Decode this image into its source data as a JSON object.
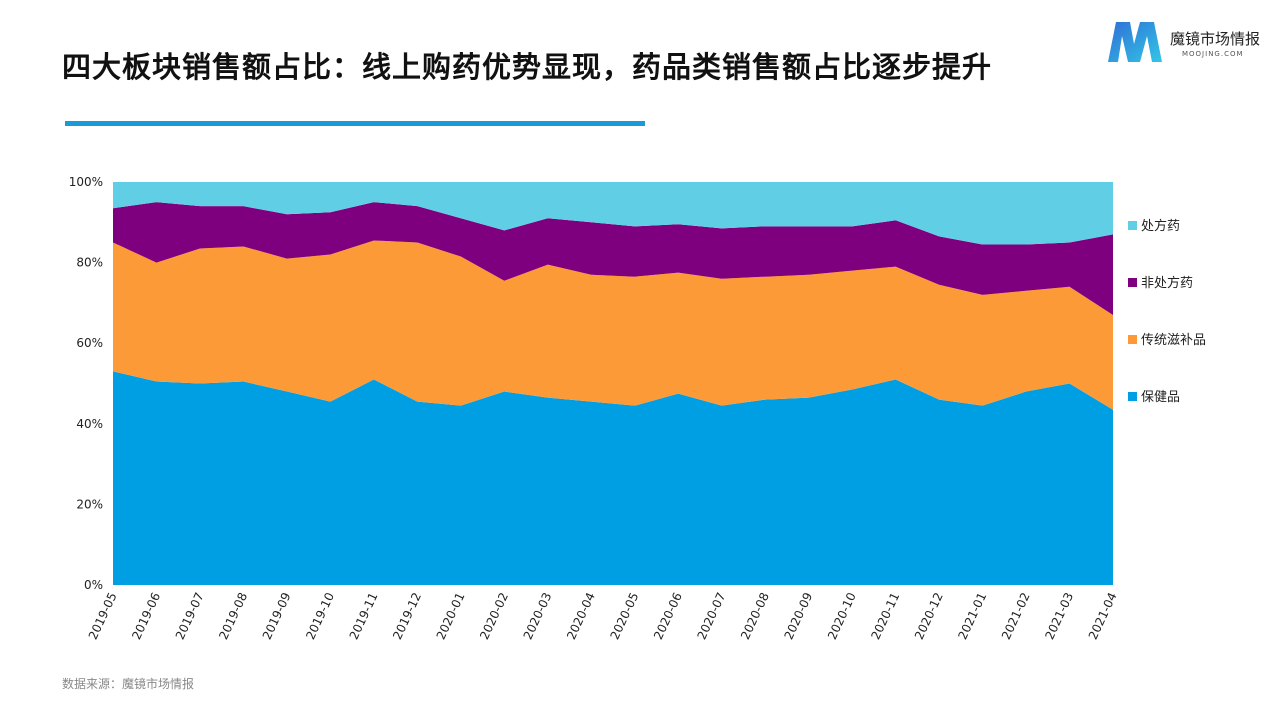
{
  "page": {
    "title": "四大板块销售额占比：线上购药优势显现，药品类销售额占比逐步提升",
    "source": "数据来源：魔镜市场情报",
    "accent_color": "#1a9ad6"
  },
  "logo": {
    "mark": "M",
    "name": "魔镜市场情报",
    "subtitle": "MOOJING.COM"
  },
  "chart_data": {
    "type": "area",
    "stacked": true,
    "percent": true,
    "categories": [
      "2019-05",
      "2019-06",
      "2019-07",
      "2019-08",
      "2019-09",
      "2019-10",
      "2019-11",
      "2019-12",
      "2020-01",
      "2020-02",
      "2020-03",
      "2020-04",
      "2020-05",
      "2020-06",
      "2020-07",
      "2020-08",
      "2020-09",
      "2020-10",
      "2020-11",
      "2020-12",
      "2021-01",
      "2021-02",
      "2021-03",
      "2021-04"
    ],
    "ylim": [
      0,
      100
    ],
    "yticks": [
      "0%",
      "20%",
      "40%",
      "60%",
      "80%",
      "100%"
    ],
    "legend_position": "right",
    "series": [
      {
        "name": "保健品",
        "color": "#009fe3",
        "values": [
          53,
          50.5,
          50,
          50.5,
          48,
          45.5,
          51,
          45.5,
          44.5,
          48,
          46.5,
          45.5,
          44.5,
          47.5,
          44.5,
          46,
          46.5,
          48.5,
          51,
          46,
          44.5,
          48,
          50,
          43.5
        ]
      },
      {
        "name": "传统滋补品",
        "color": "#fd9a38",
        "values": [
          32,
          29.5,
          33.5,
          33.5,
          33,
          36.5,
          34.5,
          39.5,
          37,
          27.5,
          33,
          31.5,
          32,
          30,
          31.5,
          30.5,
          30.5,
          29.5,
          28,
          28.5,
          27.5,
          25,
          24,
          23.5
        ]
      },
      {
        "name": "非处方药",
        "color": "#7f007f",
        "values": [
          8.5,
          15,
          10.5,
          10,
          11,
          10.5,
          9.5,
          9,
          9.5,
          12.5,
          11.5,
          13,
          12.5,
          12,
          12.5,
          12.5,
          12,
          11,
          11.5,
          12,
          12.5,
          11.5,
          11,
          20
        ]
      },
      {
        "name": "处方药",
        "color": "#60cfe5",
        "values": [
          6.5,
          5,
          6,
          6,
          8,
          7.5,
          5,
          6,
          9,
          12,
          9,
          10,
          11,
          10.5,
          11.5,
          11,
          11,
          11,
          9.5,
          13.5,
          15.5,
          15.5,
          15,
          13
        ]
      }
    ]
  }
}
